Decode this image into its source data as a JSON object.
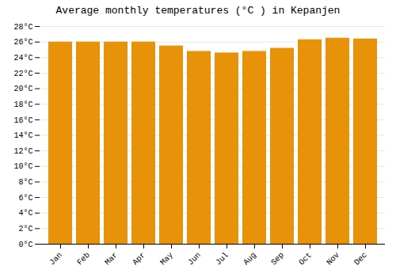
{
  "chart_data": {
    "type": "bar",
    "title": "Average monthly temperatures (°C ) in Kepanjen",
    "categories": [
      "Jan",
      "Feb",
      "Mar",
      "Apr",
      "May",
      "Jun",
      "Jul",
      "Aug",
      "Sep",
      "Oct",
      "Nov",
      "Dec"
    ],
    "values": [
      26.0,
      26.0,
      26.0,
      26.0,
      25.5,
      24.8,
      24.6,
      24.8,
      25.2,
      26.3,
      26.5,
      26.4
    ],
    "color": "#E8920A",
    "ylim": [
      0,
      28
    ],
    "yticks": [
      {
        "value": 0,
        "label": "0°C"
      },
      {
        "value": 2,
        "label": "2°C"
      },
      {
        "value": 4,
        "label": "4°C"
      },
      {
        "value": 6,
        "label": "6°C"
      },
      {
        "value": 8,
        "label": "8°C"
      },
      {
        "value": 10,
        "label": "10°C"
      },
      {
        "value": 12,
        "label": "12°C"
      },
      {
        "value": 14,
        "label": "14°C"
      },
      {
        "value": 16,
        "label": "16°C"
      },
      {
        "value": 18,
        "label": "18°C"
      },
      {
        "value": 20,
        "label": "20°C"
      },
      {
        "value": 22,
        "label": "22°C"
      },
      {
        "value": 24,
        "label": "24°C"
      },
      {
        "value": 26,
        "label": "26°C"
      },
      {
        "value": 28,
        "label": "28°C"
      }
    ],
    "grid": true
  }
}
